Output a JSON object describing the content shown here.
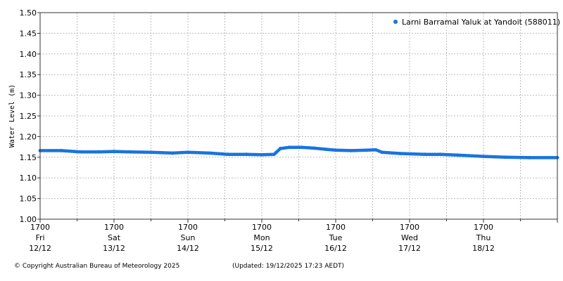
{
  "chart_data": {
    "type": "line",
    "ylabel": "Water Level (m)",
    "ylim": [
      1.0,
      1.5
    ],
    "yticks": [
      "1.00",
      "1.05",
      "1.10",
      "1.15",
      "1.20",
      "1.25",
      "1.30",
      "1.35",
      "1.40",
      "1.45",
      "1.50"
    ],
    "xlim": [
      "2025-12-12 17:00",
      "2025-12-19 17:00"
    ],
    "xticks": [
      {
        "time": "1700",
        "day": "Fri",
        "date": "12/12"
      },
      {
        "time": "1700",
        "day": "Sat",
        "date": "13/12"
      },
      {
        "time": "1700",
        "day": "Sun",
        "date": "14/12"
      },
      {
        "time": "1700",
        "day": "Mon",
        "date": "15/12"
      },
      {
        "time": "1700",
        "day": "Tue",
        "date": "16/12"
      },
      {
        "time": "1700",
        "day": "Wed",
        "date": "17/12"
      },
      {
        "time": "1700",
        "day": "Thu",
        "date": "18/12"
      }
    ],
    "grid": true,
    "legend_position": "top-right",
    "series": [
      {
        "name": "Larni Barramal Yaluk at Yandoit (588011)",
        "color": "#1874e0",
        "x": [
          "2025-12-12 17:00",
          "2025-12-13 00:00",
          "2025-12-13 06:00",
          "2025-12-13 12:00",
          "2025-12-13 17:00",
          "2025-12-13 22:00",
          "2025-12-14 05:00",
          "2025-12-14 12:00",
          "2025-12-14 17:00",
          "2025-12-15 00:00",
          "2025-12-15 06:00",
          "2025-12-15 12:00",
          "2025-12-15 17:00",
          "2025-12-15 21:00",
          "2025-12-15 23:00",
          "2025-12-16 02:00",
          "2025-12-16 06:00",
          "2025-12-16 10:00",
          "2025-12-16 14:00",
          "2025-12-16 17:00",
          "2025-12-16 22:00",
          "2025-12-17 03:00",
          "2025-12-17 06:00",
          "2025-12-17 08:00",
          "2025-12-17 14:00",
          "2025-12-17 22:00",
          "2025-12-18 03:00",
          "2025-12-18 09:00",
          "2025-12-18 17:00",
          "2025-12-19 00:00",
          "2025-12-19 08:00",
          "2025-12-19 17:00"
        ],
        "values": [
          1.166,
          1.166,
          1.163,
          1.163,
          1.164,
          1.163,
          1.162,
          1.16,
          1.162,
          1.16,
          1.157,
          1.157,
          1.156,
          1.157,
          1.171,
          1.174,
          1.174,
          1.172,
          1.169,
          1.167,
          1.166,
          1.167,
          1.168,
          1.162,
          1.159,
          1.157,
          1.157,
          1.155,
          1.152,
          1.15,
          1.149,
          1.149
        ]
      }
    ]
  },
  "footer": {
    "copyright": "© Copyright Australian Bureau of Meteorology 2025",
    "updated": "(Updated: 19/12/2025 17:23 AEDT)"
  }
}
